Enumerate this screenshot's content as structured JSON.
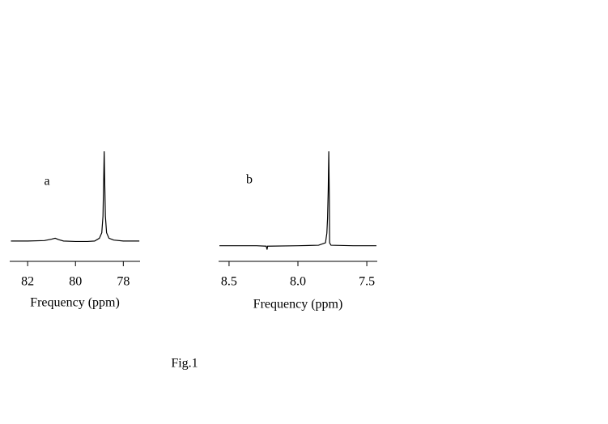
{
  "caption": "Fig.1",
  "chart_data": [
    {
      "type": "line",
      "label": "a",
      "xlabel": "Frequency (ppm)",
      "color": "#000000",
      "x": [
        82.7,
        82.0,
        81.3,
        81.0,
        80.85,
        80.7,
        80.5,
        80.0,
        79.5,
        79.2,
        79.0,
        78.9,
        78.85,
        78.82,
        78.8,
        78.78,
        78.75,
        78.7,
        78.6,
        78.4,
        78.0,
        77.5,
        77.33
      ],
      "values": [
        3,
        3,
        3.5,
        5,
        6,
        4.5,
        3,
        2.5,
        2.5,
        3,
        6,
        12,
        30,
        70,
        100,
        70,
        30,
        12,
        6,
        4,
        3,
        3,
        3
      ],
      "xlim": [
        82.75,
        77.3
      ],
      "xticks": [
        82,
        80,
        78
      ],
      "ylim": [
        -5,
        100
      ]
    },
    {
      "type": "line",
      "label": "b",
      "xlabel": "Frequency (ppm)",
      "color": "#000000",
      "x": [
        8.57,
        8.3,
        8.23,
        8.224,
        8.22,
        8.0,
        7.85,
        7.8,
        7.79,
        7.785,
        7.78,
        7.776,
        7.772,
        7.77,
        7.76,
        7.6,
        7.43
      ],
      "values": [
        2,
        2,
        1.5,
        -2,
        1.5,
        2,
        2.5,
        5,
        15,
        30,
        60,
        100,
        50,
        5,
        2.5,
        2,
        2
      ],
      "xlim": [
        8.576,
        7.424
      ],
      "xticks": [
        8.5,
        {
          "value": 8,
          "label": "8.0"
        },
        7.5
      ],
      "ylim": [
        -5,
        100
      ]
    }
  ]
}
